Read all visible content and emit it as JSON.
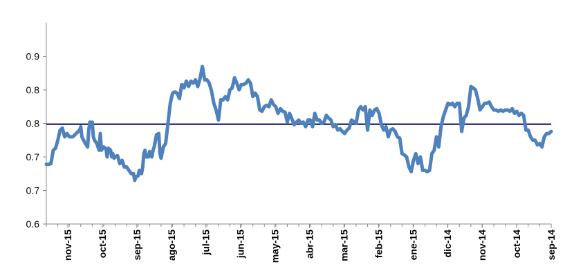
{
  "chart_data": {
    "type": "line",
    "title": "",
    "xlabel": "",
    "ylabel": "",
    "grid": false,
    "legend": "none",
    "x_axis_reversed": true,
    "ylim": [
      0.6,
      0.9
    ],
    "y_tick_labels": [
      "0.6",
      "0.7",
      "0.7",
      "0.8",
      "0.8",
      "0.9"
    ],
    "y_tick_values": [
      0.6,
      0.65,
      0.7,
      0.75,
      0.8,
      0.85
    ],
    "x_tick_labels": [
      "nov-15",
      "oct-15",
      "sep-15",
      "ago-15",
      "jul-15",
      "jun-15",
      "may-15",
      "abr-15",
      "mar-15",
      "feb-15",
      "ene-15",
      "dic-14",
      "nov-14",
      "oct-14",
      "sep-14"
    ],
    "reference_line": {
      "value": 0.7488,
      "color": "#000066"
    },
    "series": [
      {
        "color": "#4f81bd",
        "points": [
          [
            0.0,
            0.689
          ],
          [
            0.2,
            0.689
          ],
          [
            0.4,
            0.69
          ],
          [
            0.6,
            0.71
          ],
          [
            0.8,
            0.713
          ],
          [
            1.0,
            0.725
          ],
          [
            1.2,
            0.74
          ],
          [
            1.4,
            0.743
          ],
          [
            1.6,
            0.73
          ],
          [
            1.8,
            0.735
          ],
          [
            2.0,
            0.73
          ],
          [
            2.3,
            0.73
          ],
          [
            2.6,
            0.735
          ],
          [
            2.9,
            0.74
          ],
          [
            3.0,
            0.745
          ],
          [
            3.1,
            0.73
          ],
          [
            3.4,
            0.72
          ],
          [
            3.6,
            0.715
          ],
          [
            3.7,
            0.74
          ],
          [
            3.8,
            0.752
          ],
          [
            3.9,
            0.75
          ],
          [
            4.0,
            0.752
          ],
          [
            4.1,
            0.73
          ],
          [
            4.2,
            0.725
          ],
          [
            4.4,
            0.72
          ],
          [
            4.6,
            0.71
          ],
          [
            4.7,
            0.735
          ],
          [
            4.8,
            0.71
          ],
          [
            5.0,
            0.715
          ],
          [
            5.2,
            0.712
          ],
          [
            5.3,
            0.7
          ],
          [
            5.4,
            0.713
          ],
          [
            5.6,
            0.71
          ],
          [
            5.7,
            0.7
          ],
          [
            5.8,
            0.705
          ],
          [
            5.9,
            0.698
          ],
          [
            6.0,
            0.7
          ],
          [
            6.2,
            0.702
          ],
          [
            6.4,
            0.69
          ],
          [
            6.6,
            0.695
          ],
          [
            6.8,
            0.685
          ],
          [
            7.0,
            0.685
          ],
          [
            7.2,
            0.68
          ],
          [
            7.4,
            0.675
          ],
          [
            7.6,
            0.675
          ],
          [
            7.7,
            0.665
          ],
          [
            7.8,
            0.67
          ],
          [
            8.0,
            0.672
          ],
          [
            8.1,
            0.68
          ],
          [
            8.2,
            0.678
          ],
          [
            8.3,
            0.675
          ],
          [
            8.4,
            0.685
          ],
          [
            8.5,
            0.705
          ],
          [
            8.6,
            0.71
          ],
          [
            8.7,
            0.7
          ],
          [
            8.9,
            0.7
          ],
          [
            9.0,
            0.708
          ],
          [
            9.2,
            0.7
          ],
          [
            9.3,
            0.71
          ],
          [
            9.4,
            0.715
          ],
          [
            9.6,
            0.733
          ],
          [
            9.8,
            0.735
          ],
          [
            9.9,
            0.705
          ],
          [
            10.0,
            0.698
          ],
          [
            10.2,
            0.715
          ],
          [
            10.4,
            0.72
          ],
          [
            10.6,
            0.75
          ],
          [
            10.8,
            0.78
          ],
          [
            11.0,
            0.795
          ],
          [
            11.2,
            0.797
          ],
          [
            11.4,
            0.795
          ],
          [
            11.6,
            0.787
          ],
          [
            11.8,
            0.808
          ],
          [
            12.0,
            0.803
          ],
          [
            12.2,
            0.813
          ],
          [
            12.4,
            0.805
          ],
          [
            12.6,
            0.813
          ],
          [
            12.8,
            0.81
          ],
          [
            13.0,
            0.815
          ],
          [
            13.2,
            0.805
          ],
          [
            13.4,
            0.817
          ],
          [
            13.6,
            0.835
          ],
          [
            13.8,
            0.815
          ],
          [
            14.0,
            0.815
          ],
          [
            14.2,
            0.81
          ],
          [
            14.4,
            0.798
          ],
          [
            14.6,
            0.78
          ],
          [
            14.8,
            0.77
          ],
          [
            15.0,
            0.755
          ],
          [
            15.2,
            0.785
          ],
          [
            15.4,
            0.785
          ],
          [
            15.6,
            0.79
          ],
          [
            15.8,
            0.785
          ],
          [
            16.0,
            0.8
          ],
          [
            16.2,
            0.803
          ],
          [
            16.4,
            0.818
          ],
          [
            16.6,
            0.81
          ],
          [
            16.8,
            0.8
          ],
          [
            17.0,
            0.808
          ],
          [
            17.2,
            0.808
          ],
          [
            17.4,
            0.81
          ],
          [
            17.6,
            0.815
          ],
          [
            17.8,
            0.81
          ],
          [
            18.0,
            0.79
          ],
          [
            18.2,
            0.795
          ],
          [
            18.4,
            0.79
          ],
          [
            18.6,
            0.77
          ],
          [
            18.8,
            0.768
          ],
          [
            19.0,
            0.775
          ],
          [
            19.2,
            0.777
          ],
          [
            19.4,
            0.775
          ],
          [
            19.6,
            0.785
          ],
          [
            19.8,
            0.778
          ],
          [
            20.0,
            0.775
          ],
          [
            20.2,
            0.765
          ],
          [
            20.4,
            0.772
          ],
          [
            20.6,
            0.768
          ],
          [
            20.8,
            0.767
          ],
          [
            21.0,
            0.752
          ],
          [
            21.2,
            0.765
          ],
          [
            21.4,
            0.757
          ],
          [
            21.6,
            0.748
          ],
          [
            21.8,
            0.752
          ],
          [
            22.0,
            0.755
          ],
          [
            22.2,
            0.75
          ],
          [
            22.4,
            0.752
          ],
          [
            22.6,
            0.745
          ],
          [
            22.8,
            0.755
          ],
          [
            23.0,
            0.755
          ],
          [
            23.2,
            0.745
          ],
          [
            23.4,
            0.765
          ],
          [
            23.6,
            0.755
          ],
          [
            23.8,
            0.755
          ],
          [
            24.0,
            0.75
          ],
          [
            24.2,
            0.752
          ],
          [
            24.4,
            0.762
          ],
          [
            24.6,
            0.758
          ],
          [
            24.8,
            0.755
          ],
          [
            25.0,
            0.745
          ],
          [
            25.2,
            0.748
          ],
          [
            25.4,
            0.74
          ],
          [
            25.6,
            0.742
          ],
          [
            25.8,
            0.738
          ],
          [
            26.0,
            0.735
          ],
          [
            26.2,
            0.74
          ],
          [
            26.4,
            0.743
          ],
          [
            26.6,
            0.755
          ],
          [
            26.8,
            0.753
          ],
          [
            27.0,
            0.75
          ],
          [
            27.2,
            0.77
          ],
          [
            27.4,
            0.775
          ],
          [
            27.6,
            0.77
          ],
          [
            27.8,
            0.775
          ],
          [
            28.0,
            0.74
          ],
          [
            28.2,
            0.77
          ],
          [
            28.4,
            0.762
          ],
          [
            28.6,
            0.77
          ],
          [
            28.8,
            0.772
          ],
          [
            29.0,
            0.765
          ],
          [
            29.2,
            0.748
          ],
          [
            29.4,
            0.74
          ],
          [
            29.6,
            0.745
          ],
          [
            29.8,
            0.73
          ],
          [
            30.0,
            0.74
          ],
          [
            30.2,
            0.742
          ],
          [
            30.4,
            0.738
          ],
          [
            30.6,
            0.73
          ],
          [
            30.8,
            0.728
          ],
          [
            31.0,
            0.705
          ],
          [
            31.2,
            0.703
          ],
          [
            31.4,
            0.7
          ],
          [
            31.6,
            0.685
          ],
          [
            31.8,
            0.678
          ],
          [
            32.0,
            0.695
          ],
          [
            32.2,
            0.705
          ],
          [
            32.4,
            0.69
          ],
          [
            32.6,
            0.7
          ],
          [
            32.8,
            0.68
          ],
          [
            33.0,
            0.68
          ],
          [
            33.2,
            0.678
          ],
          [
            33.4,
            0.68
          ],
          [
            33.6,
            0.705
          ],
          [
            33.8,
            0.71
          ],
          [
            34.0,
            0.73
          ],
          [
            34.2,
            0.715
          ],
          [
            34.4,
            0.745
          ],
          [
            34.6,
            0.76
          ],
          [
            34.8,
            0.77
          ],
          [
            35.0,
            0.78
          ],
          [
            35.2,
            0.778
          ],
          [
            35.4,
            0.78
          ],
          [
            35.6,
            0.775
          ],
          [
            35.8,
            0.78
          ],
          [
            36.0,
            0.78
          ],
          [
            36.2,
            0.738
          ],
          [
            36.4,
            0.758
          ],
          [
            36.6,
            0.762
          ],
          [
            36.8,
            0.775
          ],
          [
            37.0,
            0.805
          ],
          [
            37.2,
            0.803
          ],
          [
            37.4,
            0.8
          ],
          [
            37.6,
            0.787
          ],
          [
            37.8,
            0.77
          ],
          [
            38.0,
            0.775
          ],
          [
            38.2,
            0.78
          ],
          [
            38.4,
            0.78
          ],
          [
            38.6,
            0.782
          ],
          [
            38.8,
            0.775
          ],
          [
            39.0,
            0.77
          ],
          [
            39.2,
            0.77
          ],
          [
            39.4,
            0.768
          ],
          [
            39.6,
            0.77
          ],
          [
            39.8,
            0.768
          ],
          [
            40.0,
            0.77
          ],
          [
            40.2,
            0.77
          ],
          [
            40.4,
            0.768
          ],
          [
            40.6,
            0.772
          ],
          [
            40.8,
            0.765
          ],
          [
            41.0,
            0.768
          ],
          [
            41.2,
            0.762
          ],
          [
            41.4,
            0.765
          ],
          [
            41.6,
            0.762
          ],
          [
            41.8,
            0.74
          ],
          [
            42.0,
            0.74
          ],
          [
            42.2,
            0.73
          ],
          [
            42.4,
            0.725
          ],
          [
            42.6,
            0.725
          ],
          [
            42.8,
            0.718
          ],
          [
            43.0,
            0.72
          ],
          [
            43.2,
            0.715
          ],
          [
            43.4,
            0.73
          ],
          [
            43.6,
            0.735
          ],
          [
            43.8,
            0.735
          ],
          [
            44.0,
            0.738
          ]
        ]
      }
    ]
  }
}
